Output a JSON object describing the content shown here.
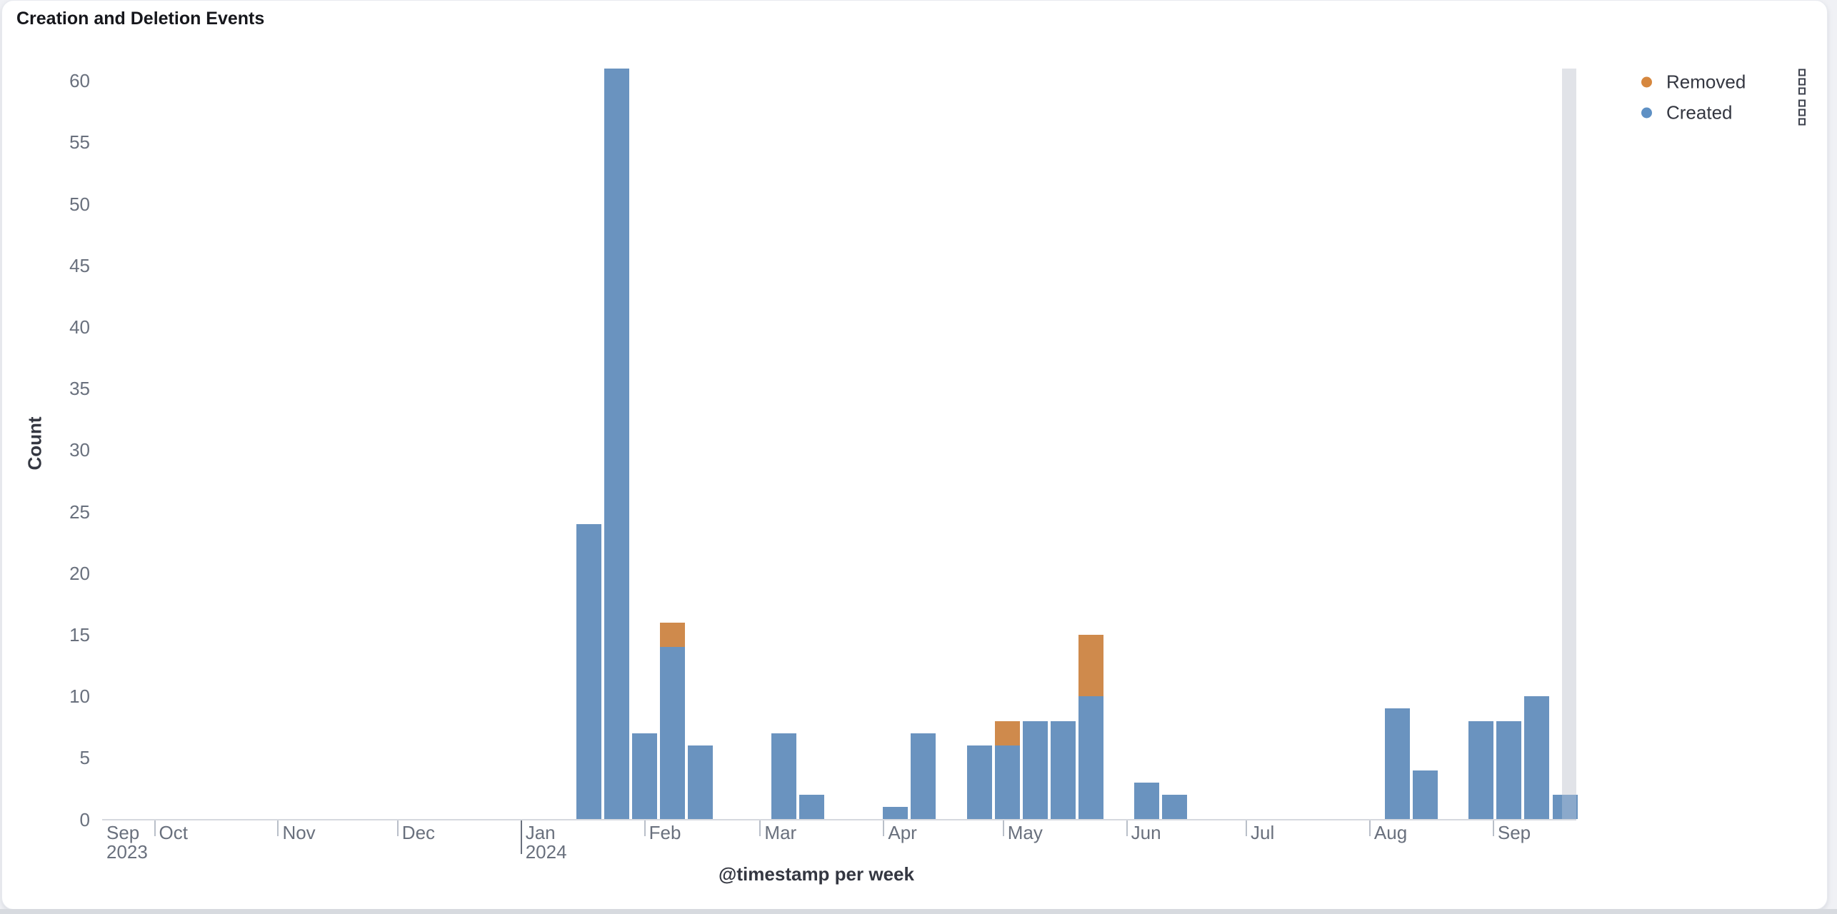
{
  "panel": {
    "title": "Creation and Deletion Events"
  },
  "legend": {
    "items": [
      {
        "id": "removed",
        "label": "Removed",
        "color": "#D6873E"
      },
      {
        "id": "created",
        "label": "Created",
        "color": "#5E90C4"
      }
    ]
  },
  "chart_data": {
    "type": "bar",
    "stacked": true,
    "title": "Creation and Deletion Events",
    "xlabel": "@timestamp per week",
    "ylabel": "Count",
    "x_unit": "week",
    "x_domain": [
      "2023-09-18",
      "2024-09-23"
    ],
    "ylim": [
      0,
      61
    ],
    "y_ticks": [
      0,
      5,
      10,
      15,
      20,
      25,
      30,
      35,
      40,
      45,
      50,
      55,
      60
    ],
    "grid": false,
    "legend_position": "right",
    "series_colors": {
      "Created": "#6A93BF",
      "Removed": "#CF8A4C"
    },
    "x_start_label": {
      "line1": "Sep",
      "line2": "2023"
    },
    "month_ticks": [
      {
        "date": "2023-10-01",
        "label": "Oct"
      },
      {
        "date": "2023-11-01",
        "label": "Nov"
      },
      {
        "date": "2023-12-01",
        "label": "Dec"
      },
      {
        "date": "2024-01-01",
        "label": "Jan",
        "sublabel": "2024",
        "major": true
      },
      {
        "date": "2024-02-01",
        "label": "Feb"
      },
      {
        "date": "2024-03-01",
        "label": "Mar"
      },
      {
        "date": "2024-04-01",
        "label": "Apr"
      },
      {
        "date": "2024-05-01",
        "label": "May"
      },
      {
        "date": "2024-06-01",
        "label": "Jun"
      },
      {
        "date": "2024-07-01",
        "label": "Jul"
      },
      {
        "date": "2024-08-01",
        "label": "Aug"
      },
      {
        "date": "2024-09-01",
        "label": "Sep"
      }
    ],
    "weeks": [
      {
        "week_start": "2024-01-15",
        "Created": 24,
        "Removed": 0
      },
      {
        "week_start": "2024-01-22",
        "Created": 61,
        "Removed": 0
      },
      {
        "week_start": "2024-01-29",
        "Created": 7,
        "Removed": 0
      },
      {
        "week_start": "2024-02-05",
        "Created": 14,
        "Removed": 2
      },
      {
        "week_start": "2024-02-12",
        "Created": 6,
        "Removed": 0
      },
      {
        "week_start": "2024-03-04",
        "Created": 7,
        "Removed": 0
      },
      {
        "week_start": "2024-03-11",
        "Created": 2,
        "Removed": 0
      },
      {
        "week_start": "2024-04-01",
        "Created": 1,
        "Removed": 0
      },
      {
        "week_start": "2024-04-08",
        "Created": 7,
        "Removed": 0
      },
      {
        "week_start": "2024-04-22",
        "Created": 6,
        "Removed": 0
      },
      {
        "week_start": "2024-04-29",
        "Created": 6,
        "Removed": 2
      },
      {
        "week_start": "2024-05-06",
        "Created": 8,
        "Removed": 0
      },
      {
        "week_start": "2024-05-13",
        "Created": 8,
        "Removed": 0
      },
      {
        "week_start": "2024-05-20",
        "Created": 10,
        "Removed": 5
      },
      {
        "week_start": "2024-06-03",
        "Created": 3,
        "Removed": 0
      },
      {
        "week_start": "2024-06-10",
        "Created": 2,
        "Removed": 0
      },
      {
        "week_start": "2024-08-05",
        "Created": 9,
        "Removed": 0
      },
      {
        "week_start": "2024-08-12",
        "Created": 4,
        "Removed": 0
      },
      {
        "week_start": "2024-08-26",
        "Created": 8,
        "Removed": 0
      },
      {
        "week_start": "2024-09-02",
        "Created": 8,
        "Removed": 0
      },
      {
        "week_start": "2024-09-09",
        "Created": 10,
        "Removed": 0
      },
      {
        "week_start": "2024-09-16",
        "Created": 2,
        "Removed": 0
      }
    ],
    "partial_bucket_band": {
      "start": "2024-09-18T12:00:00Z",
      "end": "2024-09-22T02:00:00Z"
    }
  }
}
